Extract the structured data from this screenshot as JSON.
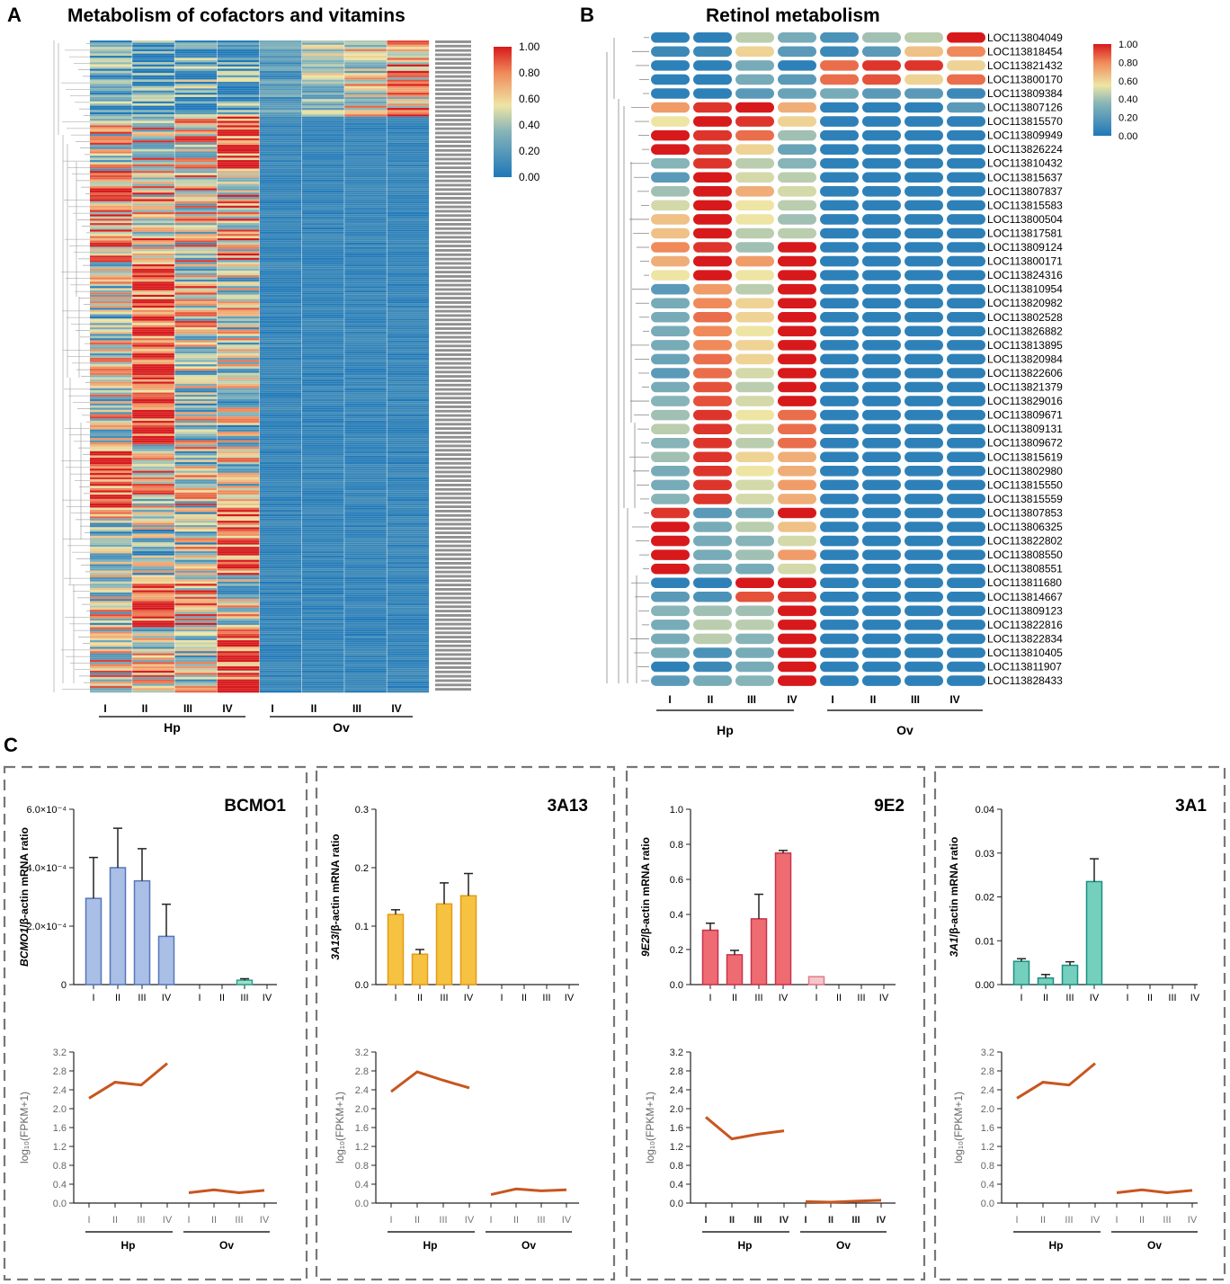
{
  "panels": {
    "a": {
      "letter": "A",
      "title": "Metabolism of cofactors and vitamins"
    },
    "b": {
      "letter": "B",
      "title": "Retinol metabolism"
    },
    "c": {
      "letter": "C"
    }
  },
  "colors": {
    "red": "#d7191c",
    "orange": "#f08a5a",
    "yellow": "#eee5a4",
    "teal": "#86b4b8",
    "blue": "#1f78b8",
    "line": "#c8561f"
  },
  "stage_labels": [
    "I",
    "II",
    "III",
    "IV"
  ],
  "groups": [
    "Hp",
    "Ov"
  ],
  "legend_ticks": [
    "1.00",
    "0.80",
    "0.60",
    "0.40",
    "0.20",
    "0.00"
  ],
  "heatmap_a": {
    "note": "Many genes; rows not individually legible. Hp columns high (mixed red/yellow), Ov columns mostly low (blue) except top block."
  },
  "chart_data": [
    {
      "type": "heatmap",
      "title": "Retinol metabolism",
      "columns": [
        "Hp I",
        "Hp II",
        "Hp III",
        "Hp IV",
        "Ov I",
        "Ov II",
        "Ov III",
        "Ov IV"
      ],
      "rows": [
        "LOC113804049",
        "LOC113818454",
        "LOC113821432",
        "LOC113800170",
        "LOC113809384",
        "LOC113807126",
        "LOC113815570",
        "LOC113809949",
        "LOC113826224",
        "LOC113810432",
        "LOC113815637",
        "LOC113807837",
        "LOC113815583",
        "LOC113800504",
        "LOC113817581",
        "LOC113809124",
        "LOC113800171",
        "LOC113824316",
        "LOC113810954",
        "LOC113820982",
        "LOC113802528",
        "LOC113826882",
        "LOC113813895",
        "LOC113820984",
        "LOC113822606",
        "LOC113821379",
        "LOC113829016",
        "LOC113809671",
        "LOC113809131",
        "LOC113809672",
        "LOC113815619",
        "LOC113802980",
        "LOC113815550",
        "LOC113815559",
        "LOC113807853",
        "LOC113806325",
        "LOC113822802",
        "LOC113808550",
        "LOC113808551",
        "LOC113811680",
        "LOC113814667",
        "LOC113809123",
        "LOC113822816",
        "LOC113822834",
        "LOC113810405",
        "LOC113811907",
        "LOC113828433"
      ],
      "values": [
        [
          0.05,
          0.05,
          0.45,
          0.3,
          0.15,
          0.4,
          0.45,
          1.0
        ],
        [
          0.1,
          0.1,
          0.6,
          0.2,
          0.1,
          0.2,
          0.65,
          0.8
        ],
        [
          0.05,
          0.05,
          0.3,
          0.05,
          0.85,
          0.95,
          0.95,
          0.6
        ],
        [
          0.05,
          0.05,
          0.3,
          0.2,
          0.85,
          0.9,
          0.6,
          0.85
        ],
        [
          0.05,
          0.05,
          0.2,
          0.25,
          0.3,
          0.2,
          0.2,
          0.1
        ],
        [
          0.75,
          0.95,
          1.0,
          0.7,
          0.05,
          0.05,
          0.05,
          0.2
        ],
        [
          0.55,
          1.0,
          0.95,
          0.6,
          0.05,
          0.05,
          0.05,
          0.05
        ],
        [
          1.0,
          0.95,
          0.85,
          0.4,
          0.05,
          0.05,
          0.05,
          0.05
        ],
        [
          1.0,
          0.95,
          0.6,
          0.25,
          0.05,
          0.05,
          0.05,
          0.05
        ],
        [
          0.35,
          0.95,
          0.45,
          0.35,
          0.05,
          0.05,
          0.05,
          0.05
        ],
        [
          0.2,
          1.0,
          0.5,
          0.45,
          0.05,
          0.05,
          0.05,
          0.05
        ],
        [
          0.4,
          1.0,
          0.7,
          0.5,
          0.05,
          0.05,
          0.05,
          0.05
        ],
        [
          0.5,
          1.0,
          0.55,
          0.45,
          0.05,
          0.05,
          0.05,
          0.05
        ],
        [
          0.65,
          1.0,
          0.55,
          0.4,
          0.05,
          0.05,
          0.05,
          0.05
        ],
        [
          0.65,
          1.0,
          0.45,
          0.45,
          0.05,
          0.05,
          0.05,
          0.05
        ],
        [
          0.8,
          0.95,
          0.4,
          1.0,
          0.05,
          0.05,
          0.05,
          0.05
        ],
        [
          0.7,
          1.0,
          0.75,
          1.0,
          0.05,
          0.05,
          0.05,
          0.05
        ],
        [
          0.55,
          1.0,
          0.55,
          1.0,
          0.05,
          0.05,
          0.05,
          0.05
        ],
        [
          0.2,
          0.75,
          0.45,
          1.0,
          0.05,
          0.05,
          0.05,
          0.05
        ],
        [
          0.3,
          0.8,
          0.6,
          1.0,
          0.05,
          0.05,
          0.05,
          0.05
        ],
        [
          0.3,
          0.85,
          0.6,
          1.0,
          0.05,
          0.05,
          0.05,
          0.05
        ],
        [
          0.3,
          0.8,
          0.55,
          1.0,
          0.05,
          0.05,
          0.05,
          0.05
        ],
        [
          0.3,
          0.8,
          0.6,
          1.0,
          0.05,
          0.05,
          0.05,
          0.05
        ],
        [
          0.25,
          0.85,
          0.6,
          1.0,
          0.05,
          0.05,
          0.05,
          0.05
        ],
        [
          0.2,
          0.85,
          0.5,
          1.0,
          0.05,
          0.05,
          0.05,
          0.05
        ],
        [
          0.3,
          0.9,
          0.45,
          1.0,
          0.05,
          0.05,
          0.05,
          0.05
        ],
        [
          0.35,
          0.9,
          0.5,
          1.0,
          0.05,
          0.05,
          0.05,
          0.05
        ],
        [
          0.4,
          0.95,
          0.55,
          0.85,
          0.05,
          0.05,
          0.05,
          0.05
        ],
        [
          0.45,
          0.95,
          0.5,
          0.85,
          0.05,
          0.05,
          0.05,
          0.05
        ],
        [
          0.35,
          0.95,
          0.45,
          0.85,
          0.05,
          0.05,
          0.05,
          0.05
        ],
        [
          0.4,
          0.95,
          0.6,
          0.7,
          0.05,
          0.05,
          0.05,
          0.05
        ],
        [
          0.3,
          0.95,
          0.55,
          0.7,
          0.05,
          0.05,
          0.05,
          0.05
        ],
        [
          0.3,
          0.95,
          0.5,
          0.75,
          0.05,
          0.05,
          0.05,
          0.05
        ],
        [
          0.35,
          0.95,
          0.5,
          0.7,
          0.05,
          0.05,
          0.05,
          0.05
        ],
        [
          0.95,
          0.2,
          0.3,
          1.0,
          0.05,
          0.05,
          0.05,
          0.05
        ],
        [
          1.0,
          0.3,
          0.45,
          0.65,
          0.05,
          0.05,
          0.05,
          0.05
        ],
        [
          1.0,
          0.3,
          0.35,
          0.5,
          0.05,
          0.05,
          0.05,
          0.05
        ],
        [
          1.0,
          0.3,
          0.4,
          0.75,
          0.05,
          0.05,
          0.05,
          0.05
        ],
        [
          1.0,
          0.3,
          0.3,
          0.5,
          0.05,
          0.05,
          0.05,
          0.05
        ],
        [
          0.05,
          0.05,
          1.0,
          1.0,
          0.05,
          0.05,
          0.05,
          0.05
        ],
        [
          0.2,
          0.15,
          0.9,
          0.95,
          0.05,
          0.05,
          0.05,
          0.05
        ],
        [
          0.35,
          0.4,
          0.4,
          1.0,
          0.05,
          0.05,
          0.05,
          0.05
        ],
        [
          0.3,
          0.45,
          0.45,
          1.0,
          0.05,
          0.05,
          0.05,
          0.05
        ],
        [
          0.3,
          0.45,
          0.35,
          1.0,
          0.05,
          0.05,
          0.05,
          0.05
        ],
        [
          0.3,
          0.15,
          0.3,
          1.0,
          0.05,
          0.05,
          0.05,
          0.05
        ],
        [
          0.05,
          0.1,
          0.3,
          1.0,
          0.05,
          0.05,
          0.05,
          0.05
        ],
        [
          0.2,
          0.3,
          0.35,
          1.0,
          0.05,
          0.05,
          0.05,
          0.05
        ]
      ],
      "colorbar": {
        "min": 0.0,
        "max": 1.0,
        "ticks": [
          "1.00",
          "0.80",
          "0.60",
          "0.40",
          "0.20",
          "0.00"
        ]
      }
    },
    {
      "type": "bar",
      "gene": "BCMO1",
      "ylabel_italic": "BCMO1",
      "ylabel_rest": "/β-actin mRNA ratio",
      "yticks": [
        "6.0×10⁻⁴",
        "4.0×10⁻⁴",
        "2.0×10⁻⁴",
        "0"
      ],
      "ylim": [
        0,
        0.0006
      ],
      "categories": [
        "Hp I",
        "Hp II",
        "Hp III",
        "Hp IV",
        "Ov I",
        "Ov II",
        "Ov III",
        "Ov IV"
      ],
      "values": [
        0.000295,
        0.0004,
        0.000355,
        0.000165,
        0,
        0,
        1.5e-05,
        0
      ],
      "errors": [
        0.00014,
        0.000135,
        0.00011,
        0.00011,
        0,
        0,
        5e-06,
        0
      ],
      "fill": "#a9bfe6",
      "stroke": "#5776b8",
      "ov_fill": "#a3dccf",
      "ov_stroke": "#2aa38b",
      "line": {
        "ylabel": "log₁₀(FPKM+1)",
        "yticks": [
          "3.2",
          "2.8",
          "2.4",
          "2.0",
          "1.6",
          "1.2",
          "0.8",
          "0.4",
          "0.0"
        ],
        "ylim": [
          0,
          3.2
        ],
        "hp": [
          2.22,
          2.56,
          2.5,
          2.96
        ],
        "ov": [
          0.22,
          0.28,
          0.22,
          0.27
        ]
      }
    },
    {
      "type": "bar",
      "gene": "3A13",
      "ylabel_italic": "3A13",
      "ylabel_rest": "/β-actin mRNA ratio",
      "yticks": [
        "0.3",
        "0.2",
        "0.1",
        "0.0"
      ],
      "ylim": [
        0,
        0.3
      ],
      "categories": [
        "Hp I",
        "Hp II",
        "Hp III",
        "Hp IV",
        "Ov I",
        "Ov II",
        "Ov III",
        "Ov IV"
      ],
      "values": [
        0.12,
        0.052,
        0.138,
        0.152,
        0,
        0,
        0,
        0
      ],
      "errors": [
        0.008,
        0.008,
        0.036,
        0.038,
        0,
        0,
        0,
        0
      ],
      "fill": "#f5c242",
      "stroke": "#e69a16",
      "ov_fill": "#f5c242",
      "ov_stroke": "#e69a16",
      "line": {
        "ylabel": "log₁₀(FPKM+1)",
        "yticks": [
          "3.2",
          "2.8",
          "2.4",
          "2.0",
          "1.6",
          "1.2",
          "0.8",
          "0.4",
          "0.0"
        ],
        "ylim": [
          0,
          3.2
        ],
        "hp": [
          2.36,
          2.78,
          2.6,
          2.44
        ],
        "ov": [
          0.18,
          0.3,
          0.26,
          0.28
        ]
      }
    },
    {
      "type": "bar",
      "gene": "9E2",
      "ylabel_italic": "9E2",
      "ylabel_rest": "/β-actin mRNA ratio",
      "yticks": [
        "1.0",
        "0.8",
        "0.6",
        "0.4",
        "0.2",
        "0.0"
      ],
      "ylim": [
        0,
        1.0
      ],
      "categories": [
        "Hp I",
        "Hp II",
        "Hp III",
        "Hp IV",
        "Ov I",
        "Ov II",
        "Ov III",
        "Ov IV"
      ],
      "values": [
        0.31,
        0.17,
        0.375,
        0.75,
        0.045,
        0,
        0,
        0
      ],
      "errors": [
        0.04,
        0.025,
        0.14,
        0.015,
        0,
        0,
        0,
        0
      ],
      "fill": "#ef6b72",
      "stroke": "#c6344d",
      "ov_fill": "#f6c6cc",
      "ov_stroke": "#e07a88",
      "line": {
        "ylabel": "log₁₀(FPKM+1)",
        "yticks": [
          "3.2",
          "2.8",
          "2.4",
          "2.0",
          "1.6",
          "1.2",
          "0.8",
          "0.4",
          "0.0"
        ],
        "ylim": [
          0,
          3.2
        ],
        "hp": [
          1.82,
          1.36,
          1.46,
          1.53
        ],
        "ov": [
          0.03,
          0.02,
          0.04,
          0.06
        ]
      }
    },
    {
      "type": "bar",
      "gene": "3A1",
      "ylabel_italic": "3A1",
      "ylabel_rest": "/β-actin mRNA ratio",
      "yticks": [
        "0.04",
        "0.03",
        "0.02",
        "0.01",
        "0.00"
      ],
      "ylim": [
        0,
        0.04
      ],
      "categories": [
        "Hp I",
        "Hp II",
        "Hp III",
        "Hp IV",
        "Ov I",
        "Ov II",
        "Ov III",
        "Ov IV"
      ],
      "values": [
        0.0053,
        0.0015,
        0.0044,
        0.0235,
        0,
        0,
        0,
        0
      ],
      "errors": [
        0.0006,
        0.0008,
        0.0008,
        0.0052,
        0,
        0,
        0,
        0
      ],
      "fill": "#74cfbc",
      "stroke": "#1d8f83",
      "ov_fill": "#74cfbc",
      "ov_stroke": "#1d8f83",
      "line": {
        "ylabel": "log₁₀(FPKM+1)",
        "yticks": [
          "3.2",
          "2.8",
          "2.4",
          "2.0",
          "1.6",
          "1.2",
          "0.8",
          "0.4",
          "0.0"
        ],
        "ylim": [
          0,
          3.2
        ],
        "hp": [
          2.22,
          2.56,
          2.5,
          2.96
        ],
        "ov": [
          0.22,
          0.28,
          0.22,
          0.27
        ]
      }
    }
  ]
}
